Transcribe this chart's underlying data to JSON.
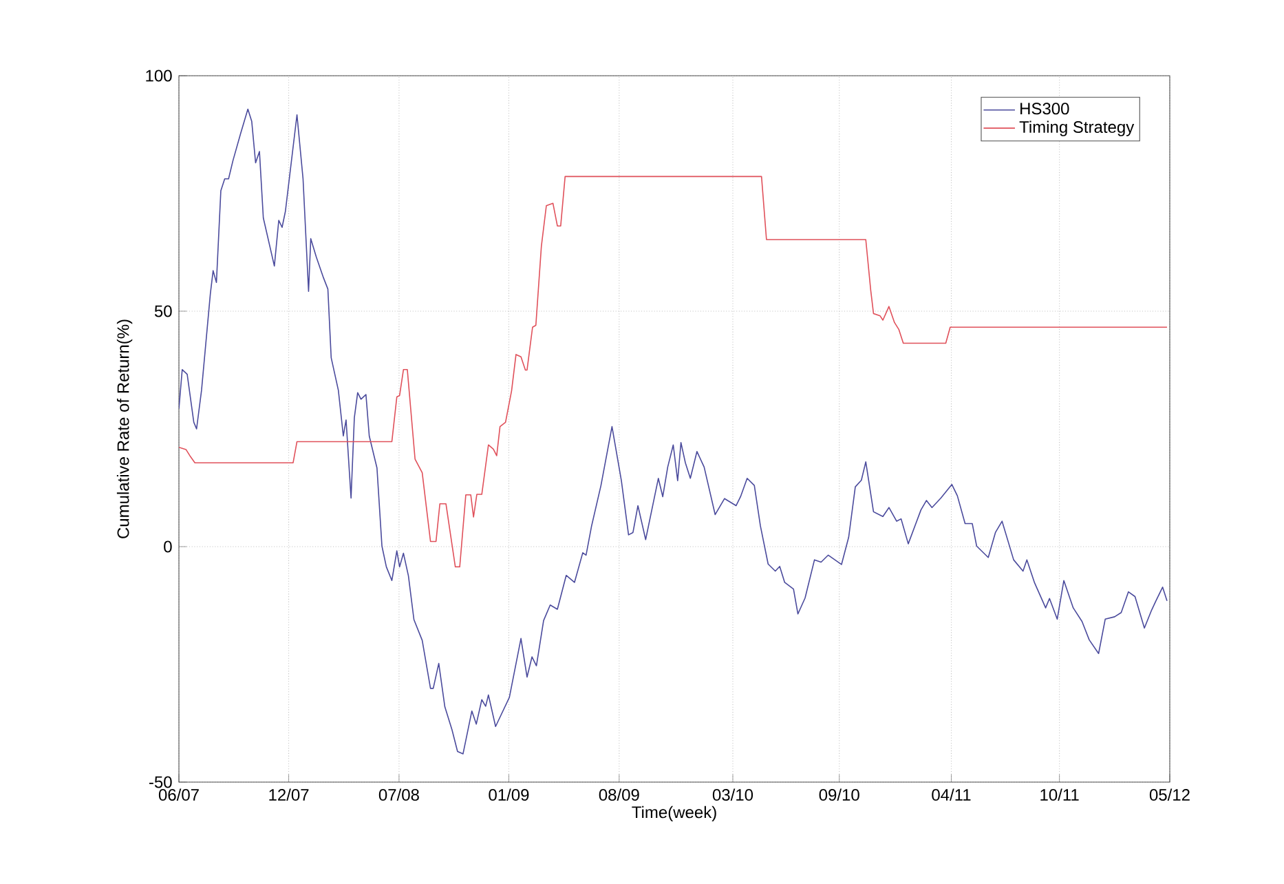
{
  "chart_data": {
    "type": "line",
    "xlabel": "Time(week)",
    "ylabel": "Cumulative Rate of Return(%)",
    "xlim": [
      "2007-06-01",
      "2012-05-01"
    ],
    "ylim": [
      -50,
      100
    ],
    "xticks": [
      {
        "value": "2007-06-01",
        "label": "06/07"
      },
      {
        "value": "2007-12-17",
        "label": "12/07"
      },
      {
        "value": "2008-07-04",
        "label": "07/08"
      },
      {
        "value": "2009-01-19",
        "label": "01/09"
      },
      {
        "value": "2009-08-07",
        "label": "08/09"
      },
      {
        "value": "2010-03-01",
        "label": "03/10"
      },
      {
        "value": "2010-09-10",
        "label": "09/10"
      },
      {
        "value": "2011-04-01",
        "label": "04/11"
      },
      {
        "value": "2011-10-14",
        "label": "10/11"
      },
      {
        "value": "2012-05-01",
        "label": "05/12"
      }
    ],
    "yticks": [
      -50,
      0,
      50,
      100
    ],
    "grid": true,
    "legend": "top right",
    "line_style": "solid",
    "series": [
      {
        "name": "HS300",
        "color": "#4a4a9c",
        "x": [
          "2007-06-01",
          "2007-06-07",
          "2007-06-16",
          "2007-06-28",
          "2007-07-03",
          "2007-07-12",
          "2007-07-28",
          "2007-08-02",
          "2007-08-08",
          "2007-08-16",
          "2007-08-23",
          "2007-08-30",
          "2007-09-07",
          "2007-09-21",
          "2007-10-04",
          "2007-10-11",
          "2007-10-18",
          "2007-10-25",
          "2007-11-01",
          "2007-11-21",
          "2007-11-29",
          "2007-12-05",
          "2007-12-11",
          "2007-12-19",
          "2008-01-01",
          "2008-01-12",
          "2008-01-22",
          "2008-01-26",
          "2008-02-05",
          "2008-02-18",
          "2008-02-26",
          "2008-03-03",
          "2008-03-16",
          "2008-03-25",
          "2008-03-30",
          "2008-04-08",
          "2008-04-14",
          "2008-04-20",
          "2008-04-26",
          "2008-05-05",
          "2008-05-11",
          "2008-05-25",
          "2008-06-03",
          "2008-06-11",
          "2008-06-21",
          "2008-06-30",
          "2008-07-05",
          "2008-07-12",
          "2008-07-21",
          "2008-07-31",
          "2008-08-15",
          "2008-08-30",
          "2008-09-04",
          "2008-09-14",
          "2008-09-25",
          "2008-10-08",
          "2008-10-18",
          "2008-10-28",
          "2008-11-13",
          "2008-11-21",
          "2008-12-01",
          "2008-12-08",
          "2008-12-13",
          "2008-12-26",
          "2009-01-20",
          "2009-02-10",
          "2009-02-21",
          "2009-03-02",
          "2009-03-10",
          "2009-03-23",
          "2009-04-04",
          "2009-04-17",
          "2009-05-03",
          "2009-05-18",
          "2009-06-02",
          "2009-06-08",
          "2009-06-18",
          "2009-07-05",
          "2009-07-25",
          "2009-08-11",
          "2009-08-24",
          "2009-09-01",
          "2009-09-10",
          "2009-09-24",
          "2009-10-17",
          "2009-10-25",
          "2009-11-03",
          "2009-11-13",
          "2009-11-21",
          "2009-11-27",
          "2009-12-05",
          "2009-12-14",
          "2009-12-26",
          "2010-01-08",
          "2010-01-28",
          "2010-02-14",
          "2010-03-07",
          "2010-03-15",
          "2010-03-27",
          "2010-04-09",
          "2010-04-20",
          "2010-05-04",
          "2010-05-17",
          "2010-05-25",
          "2010-06-03",
          "2010-06-19",
          "2010-06-27",
          "2010-07-10",
          "2010-07-27",
          "2010-08-08",
          "2010-08-21",
          "2010-09-02",
          "2010-09-14",
          "2010-09-27",
          "2010-10-09",
          "2010-10-20",
          "2010-10-28",
          "2010-11-11",
          "2010-11-28",
          "2010-12-09",
          "2010-12-23",
          "2010-12-31",
          "2011-01-13",
          "2011-02-05",
          "2011-02-15",
          "2011-02-25",
          "2011-03-13",
          "2011-04-02",
          "2011-04-12",
          "2011-04-26",
          "2011-05-09",
          "2011-05-17",
          "2011-06-07",
          "2011-06-20",
          "2011-07-02",
          "2011-07-23",
          "2011-08-09",
          "2011-08-16",
          "2011-08-30",
          "2011-09-19",
          "2011-09-26",
          "2011-10-10",
          "2011-10-22",
          "2011-11-08",
          "2011-11-24",
          "2011-12-07",
          "2011-12-24",
          "2012-01-05",
          "2012-01-22",
          "2012-02-03",
          "2012-02-16",
          "2012-02-28",
          "2012-03-16",
          "2012-03-29",
          "2012-04-06",
          "2012-04-18",
          "2012-04-26"
        ],
        "values": [
          29.3,
          37.6,
          36.6,
          26.4,
          25,
          33.2,
          53.7,
          58.6,
          56.1,
          75.6,
          78.1,
          78.1,
          82,
          87.8,
          92.9,
          90.3,
          81.5,
          83.9,
          69.8,
          59.6,
          69.3,
          67.8,
          71.2,
          79,
          91.7,
          78.1,
          54.2,
          65.4,
          61.5,
          57.1,
          54.7,
          40.1,
          33.2,
          23.5,
          26.9,
          10.3,
          27.4,
          32.7,
          31.3,
          32.3,
          23.5,
          16.7,
          0.1,
          -4.3,
          -7.2,
          -0.9,
          -4.3,
          -1.4,
          -6.2,
          -15.5,
          -19.9,
          -30.1,
          -30.1,
          -24.8,
          -34,
          -38.9,
          -43.5,
          -44,
          -34.9,
          -37.7,
          -32.5,
          -33.9,
          -31.5,
          -38.2,
          -32,
          -19.5,
          -27.7,
          -23.4,
          -25.3,
          -15.7,
          -12.4,
          -13.3,
          -6.1,
          -7.6,
          -1.3,
          -1.8,
          4.4,
          13,
          25.5,
          14,
          2.5,
          3,
          8.7,
          1.5,
          14.5,
          10.6,
          16.9,
          21.6,
          14,
          22.1,
          17.8,
          14.5,
          20.2,
          16.9,
          6.8,
          10.2,
          8.7,
          10.6,
          14.5,
          13,
          4.4,
          -3.7,
          -5.2,
          -4.2,
          -7.6,
          -9,
          -14.3,
          -10.9,
          -2.8,
          -3.3,
          -1.8,
          -2.8,
          -3.8,
          2,
          12.7,
          14.1,
          18,
          7.4,
          6.4,
          8.3,
          5.4,
          5.9,
          0.6,
          7.8,
          9.8,
          8.3,
          10.3,
          13.2,
          10.8,
          4.9,
          4.9,
          0.1,
          -2.3,
          3,
          5.4,
          -2.8,
          -5.2,
          -2.8,
          -7.7,
          -13,
          -11,
          -15.4,
          -7.2,
          -13,
          -15.9,
          -19.8,
          -22.7,
          -15.4,
          -14.9,
          -14,
          -9.6,
          -10.6,
          -17.3,
          -13.5,
          -11.5,
          -8.6,
          -11.5
        ]
      },
      {
        "name": "Timing Strategy",
        "color": "#e0505a",
        "x": [
          "2007-06-01",
          "2007-06-14",
          "2007-06-22",
          "2007-06-30",
          "2007-12-25",
          "2008-01-01",
          "2008-06-21",
          "2008-06-30",
          "2008-07-05",
          "2008-07-12",
          "2008-07-19",
          "2008-08-02",
          "2008-08-15",
          "2008-08-30",
          "2008-09-09",
          "2008-09-16",
          "2008-09-27",
          "2008-10-14",
          "2008-10-22",
          "2008-11-02",
          "2008-11-11",
          "2008-11-16",
          "2008-11-22",
          "2008-12-01",
          "2008-12-13",
          "2008-12-22",
          "2008-12-28",
          "2009-01-03",
          "2009-01-13",
          "2009-01-24",
          "2009-02-01",
          "2009-02-10",
          "2009-02-18",
          "2009-02-21",
          "2009-03-03",
          "2009-03-09",
          "2009-03-19",
          "2009-03-28",
          "2009-04-09",
          "2009-04-17",
          "2009-04-23",
          "2009-05-01",
          "2010-04-22",
          "2010-05-01",
          "2010-10-28",
          "2010-11-06",
          "2010-11-11",
          "2010-11-23",
          "2010-11-28",
          "2010-12-09",
          "2010-12-19",
          "2010-12-27",
          "2011-01-04",
          "2011-03-22",
          "2011-03-30",
          "2012-04-26"
        ],
        "values": [
          21.1,
          20.6,
          19.1,
          17.8,
          17.8,
          22.3,
          22.3,
          31.8,
          32.1,
          37.6,
          37.6,
          18.6,
          15.7,
          1.1,
          1.1,
          9.1,
          9.1,
          -4.3,
          -4.3,
          11,
          11,
          6.3,
          11.1,
          11.1,
          21.6,
          20.7,
          19.3,
          25.5,
          26.4,
          33.1,
          40.8,
          40.3,
          37.5,
          37.5,
          46.6,
          47,
          63.8,
          72.4,
          72.9,
          68.1,
          68.1,
          78.6,
          78.6,
          65.2,
          65.2,
          54.4,
          49.5,
          49,
          48.1,
          51,
          47.6,
          46.1,
          43.2,
          43.2,
          46.6,
          46.6
        ]
      }
    ]
  }
}
